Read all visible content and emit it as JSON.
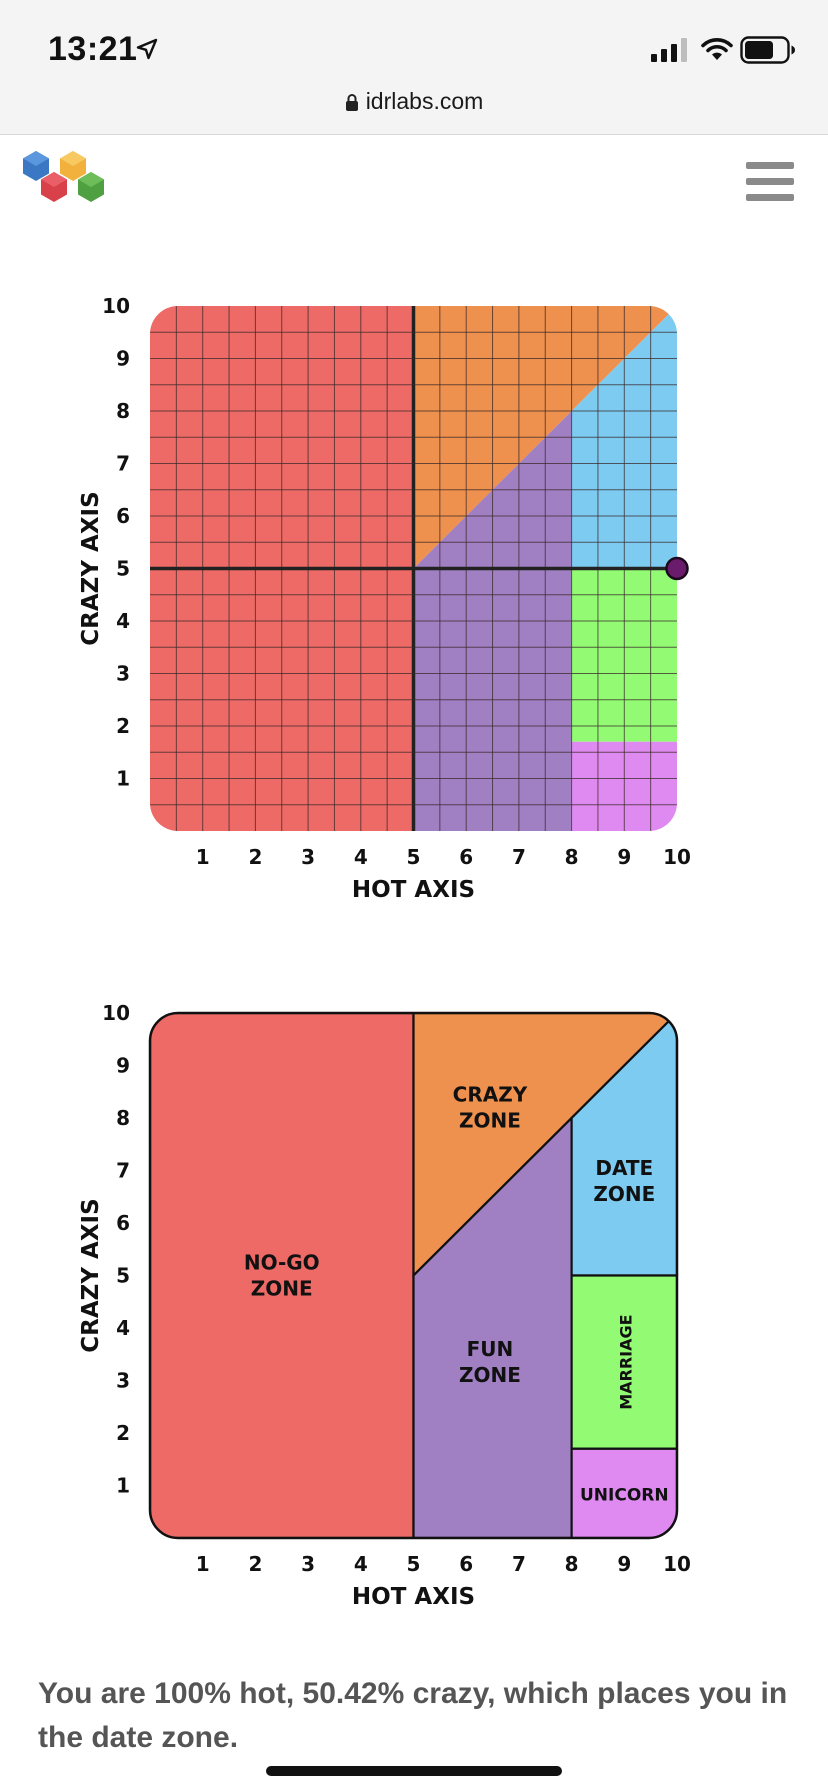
{
  "status_bar": {
    "time": "13:21",
    "icons": [
      "location-arrow-icon",
      "cellular-signal-icon",
      "wifi-icon",
      "battery-icon"
    ]
  },
  "browser": {
    "url": "idrlabs.com",
    "lock_icon": "lock-icon"
  },
  "site": {
    "logo": "hexagon-logo",
    "menu_icon": "hamburger-menu-icon"
  },
  "colors": {
    "no_go": "#ed6a66",
    "crazy": "#ee914e",
    "fun": "#a07fc3",
    "date": "#7ecbf2",
    "marriage": "#92fb73",
    "unicorn": "#df8af0",
    "marker": "#6a1b6b"
  },
  "chart_data": [
    {
      "type": "scatter",
      "name": "hot-crazy-matrix-result",
      "xlabel": "HOT AXIS",
      "ylabel": "CRAZY AXIS",
      "xlim": [
        0,
        10
      ],
      "ylim": [
        0,
        10
      ],
      "x_ticks": [
        "1",
        "2",
        "3",
        "4",
        "5",
        "6",
        "7",
        "8",
        "9",
        "10"
      ],
      "y_ticks": [
        "1",
        "2",
        "3",
        "4",
        "5",
        "6",
        "7",
        "8",
        "9",
        "10"
      ],
      "grid": true,
      "grid_step": 0.5,
      "point": {
        "x": 10,
        "y": 5
      },
      "zones": [
        {
          "name": "no-go",
          "polygon": [
            [
              0,
              0
            ],
            [
              5,
              0
            ],
            [
              5,
              10
            ],
            [
              0,
              10
            ]
          ]
        },
        {
          "name": "crazy",
          "polygon": [
            [
              5,
              5
            ],
            [
              5,
              10
            ],
            [
              10,
              10
            ]
          ]
        },
        {
          "name": "fun",
          "polygon": [
            [
              5,
              0
            ],
            [
              8,
              0
            ],
            [
              8,
              8
            ],
            [
              5,
              5
            ]
          ]
        },
        {
          "name": "date",
          "polygon": [
            [
              8,
              5
            ],
            [
              10,
              5
            ],
            [
              10,
              10
            ],
            [
              8,
              8
            ]
          ]
        },
        {
          "name": "marriage",
          "polygon": [
            [
              8,
              1.7
            ],
            [
              10,
              1.7
            ],
            [
              10,
              5
            ],
            [
              8,
              5
            ]
          ]
        },
        {
          "name": "unicorn",
          "polygon": [
            [
              8,
              0
            ],
            [
              10,
              0
            ],
            [
              10,
              1.7
            ],
            [
              8,
              1.7
            ]
          ]
        }
      ]
    },
    {
      "type": "diagram",
      "name": "hot-crazy-matrix-zones",
      "xlabel": "HOT AXIS",
      "ylabel": "CRAZY AXIS",
      "xlim": [
        0,
        10
      ],
      "ylim": [
        0,
        10
      ],
      "x_ticks": [
        "1",
        "2",
        "3",
        "4",
        "5",
        "6",
        "7",
        "8",
        "9",
        "10"
      ],
      "y_ticks": [
        "1",
        "2",
        "3",
        "4",
        "5",
        "6",
        "7",
        "8",
        "9",
        "10"
      ],
      "grid": false,
      "zones": [
        {
          "name": "no-go",
          "lines": [
            "NO-GO",
            "ZONE"
          ],
          "label_at": [
            2.5,
            5
          ],
          "polygon": [
            [
              0,
              0
            ],
            [
              5,
              0
            ],
            [
              5,
              10
            ],
            [
              0,
              10
            ]
          ]
        },
        {
          "name": "crazy",
          "lines": [
            "CRAZY",
            "ZONE"
          ],
          "label_at": [
            6.45,
            8.2
          ],
          "polygon": [
            [
              5,
              5
            ],
            [
              5,
              10
            ],
            [
              10,
              10
            ]
          ]
        },
        {
          "name": "fun",
          "lines": [
            "FUN",
            "ZONE"
          ],
          "label_at": [
            6.45,
            3.35
          ],
          "polygon": [
            [
              5,
              0
            ],
            [
              8,
              0
            ],
            [
              8,
              8
            ],
            [
              5,
              5
            ]
          ]
        },
        {
          "name": "date",
          "lines": [
            "DATE",
            "ZONE"
          ],
          "label_at": [
            9,
            6.8
          ],
          "polygon": [
            [
              8,
              5
            ],
            [
              10,
              5
            ],
            [
              10,
              10
            ],
            [
              8,
              8
            ]
          ]
        },
        {
          "name": "marriage",
          "lines": [
            "MARRIAGE"
          ],
          "label_at": [
            9,
            3.35
          ],
          "vertical": true,
          "polygon": [
            [
              8,
              1.7
            ],
            [
              10,
              1.7
            ],
            [
              10,
              5
            ],
            [
              8,
              5
            ]
          ]
        },
        {
          "name": "unicorn",
          "lines": [
            "UNICORN"
          ],
          "label_at": [
            9,
            0.85
          ],
          "polygon": [
            [
              8,
              0
            ],
            [
              10,
              0
            ],
            [
              10,
              1.7
            ],
            [
              8,
              1.7
            ]
          ]
        }
      ]
    }
  ],
  "result_text": "You are 100% hot, 50.42% crazy, which places you in the date zone."
}
